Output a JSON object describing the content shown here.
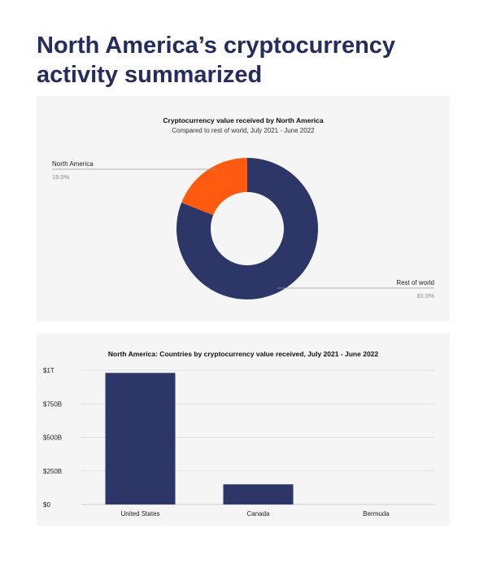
{
  "page": {
    "title": "North America’s cryptocurrency activity summarized"
  },
  "colors": {
    "navy": "#2c3768",
    "orange": "#ff5a0f",
    "title": "#262d5e",
    "grid": "#dadada",
    "muted": "#888888",
    "text": "#222222"
  },
  "chart_data": [
    {
      "type": "pie",
      "variant": "donut",
      "title": "Cryptocurrency value received by North America",
      "subtitle": "Compared to rest of world, July 2021 - June 2022",
      "slices": [
        {
          "label": "North America",
          "value": 19.0,
          "value_label": "19.0%",
          "color": "#ff5a0f"
        },
        {
          "label": "Rest of world",
          "value": 81.0,
          "value_label": "81.0%",
          "color": "#2c3768"
        }
      ]
    },
    {
      "type": "bar",
      "title": "North America: Countries by cryptocurrency value received, July 2021 - June 2022",
      "categories": [
        "United States",
        "Canada",
        "Bermuda"
      ],
      "values": [
        980,
        150,
        0
      ],
      "unit": "billions USD",
      "ylim": [
        0,
        1000
      ],
      "yticks": [
        {
          "value": 0,
          "label": "$0"
        },
        {
          "value": 250,
          "label": "$250B"
        },
        {
          "value": 500,
          "label": "$500B"
        },
        {
          "value": 750,
          "label": "$750B"
        },
        {
          "value": 1000,
          "label": "$1T"
        }
      ],
      "grid": true,
      "color": "#2c3768"
    }
  ]
}
